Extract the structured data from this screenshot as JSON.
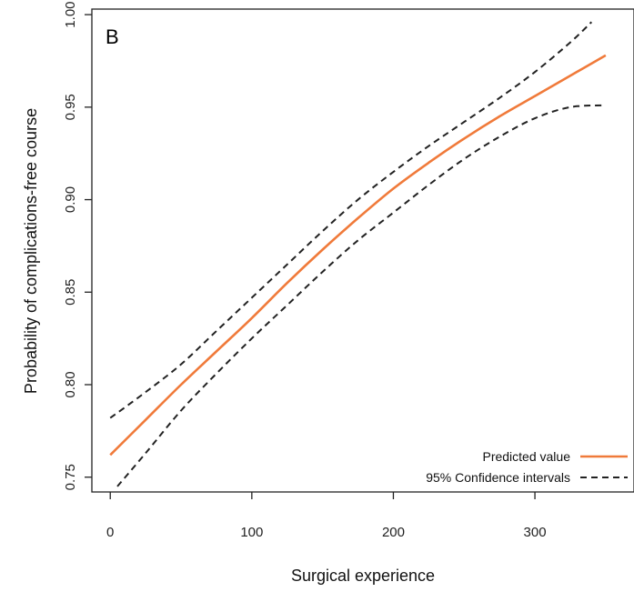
{
  "chart_data": {
    "type": "line",
    "panel_label": "B",
    "xlabel": "Surgical experience",
    "ylabel": "Probability of complications-free course",
    "xlim": [
      -13,
      370
    ],
    "ylim": [
      0.742,
      1.003
    ],
    "x_ticks": [
      0,
      100,
      200,
      300
    ],
    "x_tick_labels": [
      "0",
      "100",
      "200",
      "300"
    ],
    "y_ticks": [
      0.75,
      0.8,
      0.85,
      0.9,
      0.95,
      1.0
    ],
    "y_tick_labels": [
      "0.75",
      "0.80",
      "0.85",
      "0.90",
      "0.95",
      "1.00"
    ],
    "grid": false,
    "legend_position": "bottom-right",
    "series": [
      {
        "name": "Predicted value",
        "color": "#f07a3a",
        "style": "solid",
        "x": [
          0,
          25,
          50,
          75,
          100,
          125,
          150,
          175,
          200,
          225,
          250,
          275,
          300,
          325,
          350
        ],
        "y": [
          0.762,
          0.781,
          0.8,
          0.818,
          0.836,
          0.855,
          0.873,
          0.89,
          0.906,
          0.92,
          0.933,
          0.945,
          0.956,
          0.967,
          0.978
        ]
      },
      {
        "name": "95% Confidence intervals",
        "color": "#222222",
        "style": "dashed",
        "x": [
          0,
          25,
          50,
          75,
          100,
          125,
          150,
          175,
          200,
          225,
          250,
          275,
          300,
          325,
          340
        ],
        "y": [
          0.782,
          0.796,
          0.811,
          0.829,
          0.847,
          0.865,
          0.883,
          0.9,
          0.915,
          0.929,
          0.942,
          0.955,
          0.969,
          0.985,
          0.996
        ]
      },
      {
        "name": "95% Confidence intervals",
        "color": "#222222",
        "style": "dashed",
        "x": [
          5,
          25,
          50,
          75,
          100,
          125,
          150,
          175,
          200,
          225,
          250,
          275,
          300,
          325,
          350
        ],
        "y": [
          0.745,
          0.763,
          0.786,
          0.806,
          0.825,
          0.843,
          0.861,
          0.878,
          0.893,
          0.908,
          0.922,
          0.934,
          0.944,
          0.95,
          0.951
        ]
      }
    ],
    "legend": [
      {
        "label": "Predicted value",
        "color": "#f07a3a",
        "style": "solid"
      },
      {
        "label": "95% Confidence intervals",
        "color": "#222222",
        "style": "dashed"
      }
    ]
  }
}
